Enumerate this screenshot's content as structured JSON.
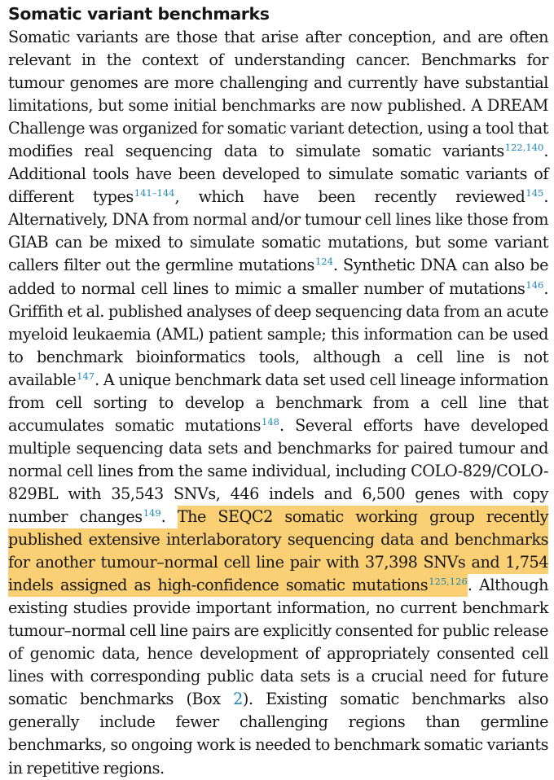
{
  "heading": "Somatic variant benchmarks",
  "segments": [
    {
      "kind": "text",
      "text": "Somatic variants are those that arise after conception, and are often relevant in the context of understanding cancer. Benchmarks for tumour genomes are more challenging and currently have substantial limitations, but some initial benchmarks are now published. A DREAM Challenge was organized for somatic variant detection, using a tool that modifies real sequencing data to simulate somatic variants"
    },
    {
      "kind": "ref",
      "text": "122,140"
    },
    {
      "kind": "text",
      "text": ". Additional tools have been developed to simulate somatic variants of different types"
    },
    {
      "kind": "ref",
      "text": "141–144"
    },
    {
      "kind": "text",
      "text": ", which have been recently reviewed"
    },
    {
      "kind": "ref",
      "text": "145"
    },
    {
      "kind": "text",
      "text": ". Alternatively, DNA from normal and/or tumour cell lines like those from GIAB can be mixed to simulate somatic mutations, but some variant callers filter out the germline mutations"
    },
    {
      "kind": "ref",
      "text": "124"
    },
    {
      "kind": "text",
      "text": ". Synthetic DNA can also be added to normal cell lines to mimic a smaller number of mutations"
    },
    {
      "kind": "ref",
      "text": "146"
    },
    {
      "kind": "text",
      "text": ". Griffith et al. published analyses of deep sequencing data from an acute myeloid leukaemia (AML) patient sample; this information can be used to benchmark bioinformatics tools, although a cell line is not available"
    },
    {
      "kind": "ref",
      "text": "147"
    },
    {
      "kind": "text",
      "text": ". A unique benchmark data set used cell lineage information from cell sorting to develop a benchmark from a cell line that accumulates somatic mutations"
    },
    {
      "kind": "ref",
      "text": "148"
    },
    {
      "kind": "text",
      "text": ". Several efforts have developed multiple sequencing data sets and benchmarks for paired tumour and normal cell lines from the same individual, including COLO-829/COLO-829BL with 35,543 SNVs, 446 indels and 6,500 genes with copy number changes"
    },
    {
      "kind": "ref",
      "text": "149"
    },
    {
      "kind": "text",
      "text": ". "
    },
    {
      "kind": "highlight",
      "text": "The SEQC2 somatic working group recently published extensive interlaboratory sequencing data and benchmarks for another tumour–normal cell line pair with 37,398 SNVs and 1,754 indels assigned as high-confidence somatic mutations"
    },
    {
      "kind": "ref",
      "text": "125,126"
    },
    {
      "kind": "text",
      "text": ". Although existing studies provide important information, no current benchmark tumour–normal cell line pairs are explicitly consented for public release of genomic data, hence development of appropriately consented cell lines with corresponding public data sets is a crucial need for future somatic benchmarks (Box "
    },
    {
      "kind": "link",
      "text": "2"
    },
    {
      "kind": "text",
      "text": "). Existing somatic benchmarks also generally include fewer challenging regions than germline benchmarks, so ongoing work is needed to benchmark somatic variants in repetitive regions."
    }
  ],
  "colors": {
    "highlight": "#fbcf73",
    "reference_link": "#1f86b9",
    "text": "#161616"
  }
}
